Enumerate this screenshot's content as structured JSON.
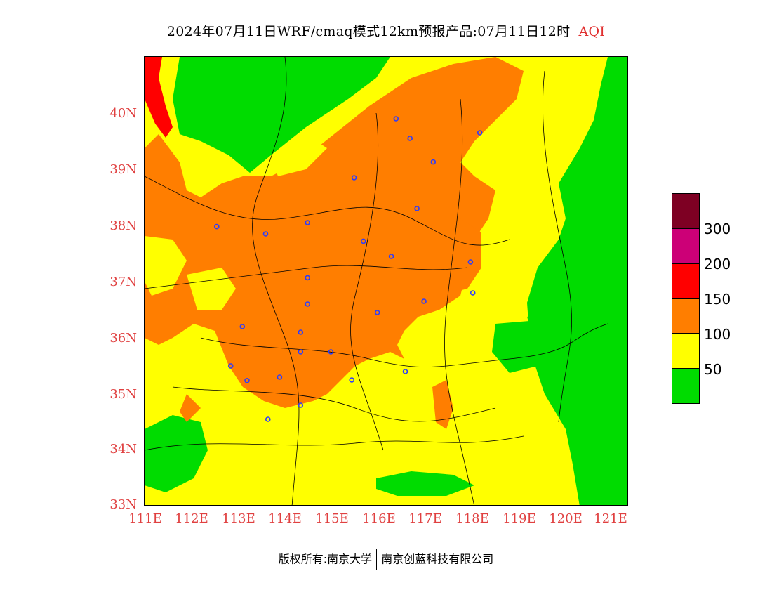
{
  "title": {
    "main": "2024年07月11日WRF/cmaq模式12km预报产品:07月11日12时",
    "tag": "AQI"
  },
  "axes": {
    "y_ticks": [
      "40N",
      "39N",
      "38N",
      "37N",
      "36N",
      "35N",
      "34N",
      "33N"
    ],
    "x_ticks": [
      "111E",
      "112E",
      "113E",
      "114E",
      "115E",
      "116E",
      "117E",
      "118E",
      "119E",
      "120E",
      "121E"
    ]
  },
  "legend": {
    "labels": [
      "300",
      "200",
      "150",
      "100",
      "50"
    ],
    "colors": {
      "lt50": "#00dc00",
      "50_100": "#ffff00",
      "100_150": "#ff7e00",
      "150_200": "#ff0000",
      "200_300": "#cc0077",
      "gt300": "#7e0023"
    }
  },
  "stations": [
    [
      116.4,
      39.9
    ],
    [
      116.7,
      39.55
    ],
    [
      118.2,
      39.65
    ],
    [
      117.2,
      39.13
    ],
    [
      115.5,
      38.85
    ],
    [
      116.85,
      38.3
    ],
    [
      112.55,
      37.98
    ],
    [
      113.6,
      37.85
    ],
    [
      114.5,
      38.05
    ],
    [
      115.7,
      37.72
    ],
    [
      116.3,
      37.45
    ],
    [
      118.0,
      37.35
    ],
    [
      114.5,
      37.07
    ],
    [
      118.05,
      36.8
    ],
    [
      117.0,
      36.65
    ],
    [
      114.5,
      36.6
    ],
    [
      116.0,
      36.45
    ],
    [
      113.1,
      36.2
    ],
    [
      114.35,
      36.1
    ],
    [
      114.35,
      35.75
    ],
    [
      115.0,
      35.75
    ],
    [
      112.85,
      35.5
    ],
    [
      113.2,
      35.24
    ],
    [
      113.9,
      35.3
    ],
    [
      115.45,
      35.25
    ],
    [
      116.6,
      35.4
    ],
    [
      114.35,
      34.8
    ],
    [
      113.65,
      34.55
    ]
  ],
  "footer": {
    "left": "版权所有:南京大学",
    "right": "南京创蓝科技有限公司"
  }
}
